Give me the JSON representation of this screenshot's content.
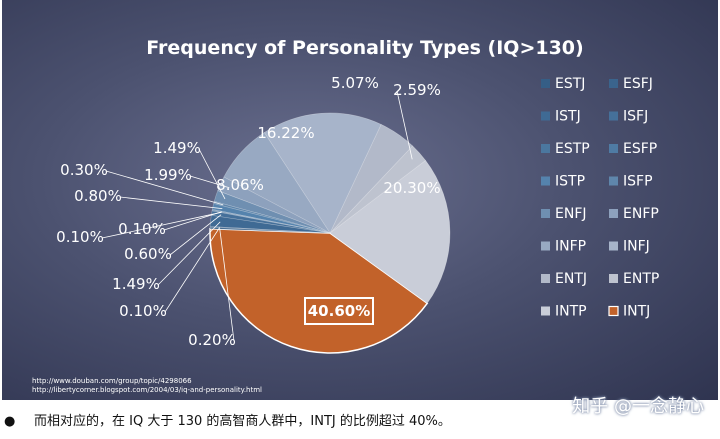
{
  "chart_data": {
    "type": "pie",
    "title": "Frequency of Personality Types (IQ>130)",
    "slices": [
      {
        "label": "INTJ",
        "value": 40.6,
        "display": "40.60%",
        "color": "#c2622a"
      },
      {
        "label": "INTP",
        "value": 20.3,
        "display": "20.30%",
        "color": "#c9cdd8"
      },
      {
        "label": "ENTP",
        "value": 2.59,
        "display": "2.59%",
        "color": "#bec3cf"
      },
      {
        "label": "ENTJ",
        "value": 5.07,
        "display": "5.07%",
        "color": "#b2b9c9"
      },
      {
        "label": "INFJ",
        "value": 16.22,
        "display": "16.22%",
        "color": "#a7b4ca"
      },
      {
        "label": "INFP",
        "value": 8.06,
        "display": "8.06%",
        "color": "#98a9c2"
      },
      {
        "label": "ENFP",
        "value": 1.99,
        "display": "1.99%",
        "color": "#8da1bd"
      },
      {
        "label": "ENFJ",
        "value": 1.49,
        "display": "1.49%",
        "color": "#6f8fb1"
      },
      {
        "label": "ISFP",
        "value": 0.3,
        "display": "0.30%",
        "color": "#5f86ab"
      },
      {
        "label": "ISTP",
        "value": 0.8,
        "display": "0.80%",
        "color": "#5583ad"
      },
      {
        "label": "ESFP",
        "value": 0.1,
        "display": "0.10%",
        "color": "#4f7ba4"
      },
      {
        "label": "ESTP",
        "value": 0.1,
        "display": "0.10%",
        "color": "#4b779f"
      },
      {
        "label": "ISFJ",
        "value": 0.6,
        "display": "0.60%",
        "color": "#45709a"
      },
      {
        "label": "ISTJ",
        "value": 1.49,
        "display": "1.49%",
        "color": "#3f6a94"
      },
      {
        "label": "ESFJ",
        "value": 0.1,
        "display": "0.10%",
        "color": "#3a648d"
      },
      {
        "label": "ESTJ",
        "value": 0.2,
        "display": "0.20%",
        "color": "#355e86"
      }
    ],
    "legend": {
      "placement": "right",
      "entries": [
        {
          "label": "ESTJ",
          "color": "#355e86"
        },
        {
          "label": "ESFJ",
          "color": "#3a648d"
        },
        {
          "label": "ISTJ",
          "color": "#3f6a94"
        },
        {
          "label": "ISFJ",
          "color": "#45709a"
        },
        {
          "label": "ESTP",
          "color": "#4b779f"
        },
        {
          "label": "ESFP",
          "color": "#4f7ba4"
        },
        {
          "label": "ISTP",
          "color": "#5583ad"
        },
        {
          "label": "ISFP",
          "color": "#5f86ab"
        },
        {
          "label": "ENFJ",
          "color": "#6f8fb1"
        },
        {
          "label": "ENFP",
          "color": "#8da1bd"
        },
        {
          "label": "INFP",
          "color": "#98a9c2"
        },
        {
          "label": "INFJ",
          "color": "#a7b4ca"
        },
        {
          "label": "ENTJ",
          "color": "#b2b9c9"
        },
        {
          "label": "ENTP",
          "color": "#bec3cf"
        },
        {
          "label": "INTP",
          "color": "#c9cdd8"
        },
        {
          "label": "INTJ",
          "color": "#c2622a"
        }
      ]
    },
    "sources": [
      "http://www.douban.com/group/topic/4298066",
      "http://libertycorner.blogspot.com/2004/03/iq-and-personality.html"
    ]
  },
  "caption": "而相对应的，在 IQ 大于 130 的高智商人群中，INTJ 的比例超过 40%。",
  "watermark": "知乎 @一念静心"
}
